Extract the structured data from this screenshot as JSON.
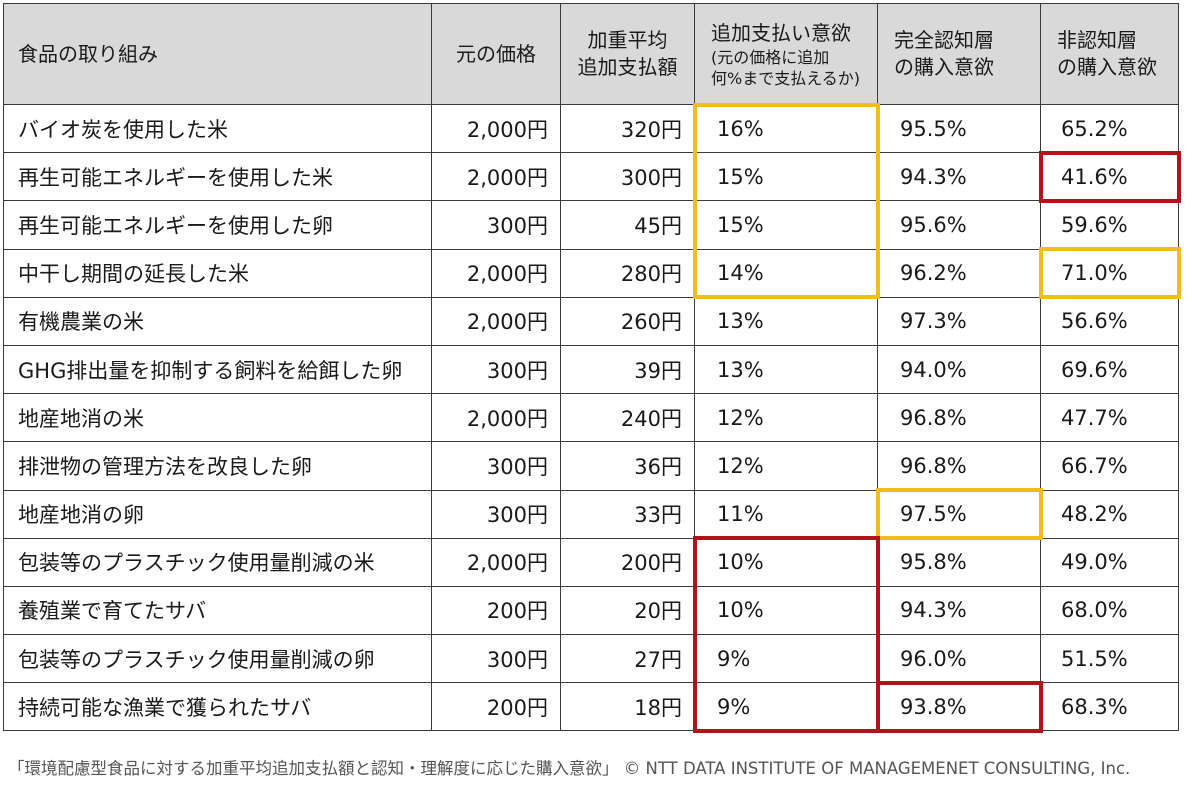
{
  "chart_data": {
    "type": "table",
    "columns": [
      "食品の取り組み",
      "元の価格",
      "加重平均\n追加支払額",
      "追加支払い意欲\n(元の価格に追加\n何%まで支払えるか)",
      "完全認知層\nの購入意欲",
      "非認知層\nの購入意欲"
    ],
    "rows": [
      [
        "バイオ炭を使用した米",
        "2,000円",
        "320円",
        "16%",
        "95.5%",
        "65.2%"
      ],
      [
        "再生可能エネルギーを使用した米",
        "2,000円",
        "300円",
        "15%",
        "94.3%",
        "41.6%"
      ],
      [
        "再生可能エネルギーを使用した卵",
        "300円",
        "45円",
        "15%",
        "95.6%",
        "59.6%"
      ],
      [
        "中干し期間の延長した米",
        "2,000円",
        "280円",
        "14%",
        "96.2%",
        "71.0%"
      ],
      [
        "有機農業の米",
        "2,000円",
        "260円",
        "13%",
        "97.3%",
        "56.6%"
      ],
      [
        "GHG排出量を抑制する飼料を給餌した卵",
        "300円",
        "39円",
        "13%",
        "94.0%",
        "69.6%"
      ],
      [
        "地産地消の米",
        "2,000円",
        "240円",
        "12%",
        "96.8%",
        "47.7%"
      ],
      [
        "排泄物の管理方法を改良した卵",
        "300円",
        "36円",
        "12%",
        "96.8%",
        "66.7%"
      ],
      [
        "地産地消の卵",
        "300円",
        "33円",
        "11%",
        "97.5%",
        "48.2%"
      ],
      [
        "包装等のプラスチック使用量削減の米",
        "2,000円",
        "200円",
        "10%",
        "95.8%",
        "49.0%"
      ],
      [
        "養殖業で育てたサバ",
        "200円",
        "20円",
        "10%",
        "94.3%",
        "68.0%"
      ],
      [
        "包装等のプラスチック使用量削減の卵",
        "300円",
        "27円",
        "9%",
        "96.0%",
        "51.5%"
      ],
      [
        "持続可能な漁業で獲られたサバ",
        "200円",
        "18円",
        "9%",
        "93.8%",
        "68.3%"
      ]
    ],
    "highlights": [
      {
        "color": "#f2bc1b",
        "column": 3,
        "rows": [
          0,
          3
        ]
      },
      {
        "color": "#b3121a",
        "column": 5,
        "rows": [
          1,
          1
        ]
      },
      {
        "color": "#f2bc1b",
        "column": 5,
        "rows": [
          3,
          3
        ]
      },
      {
        "color": "#f2bc1b",
        "column": 4,
        "rows": [
          8,
          8
        ]
      },
      {
        "color": "#b3121a",
        "column": 3,
        "rows": [
          9,
          12
        ]
      },
      {
        "color": "#b3121a",
        "column": 4,
        "rows": [
          12,
          12
        ]
      }
    ]
  },
  "caption": "「環境配慮型食品に対する加重平均追加支払額と認知・理解度に応じた購入意欲」 © NTT DATA INSTITUTE OF MANAGEMENET CONSULTING, Inc.",
  "colors": {
    "header_bg": "#d9d9d9",
    "border": "#3a3a3a",
    "highlight_yellow": "#f2bc1b",
    "highlight_red": "#b3121a",
    "caption": "#555555"
  }
}
